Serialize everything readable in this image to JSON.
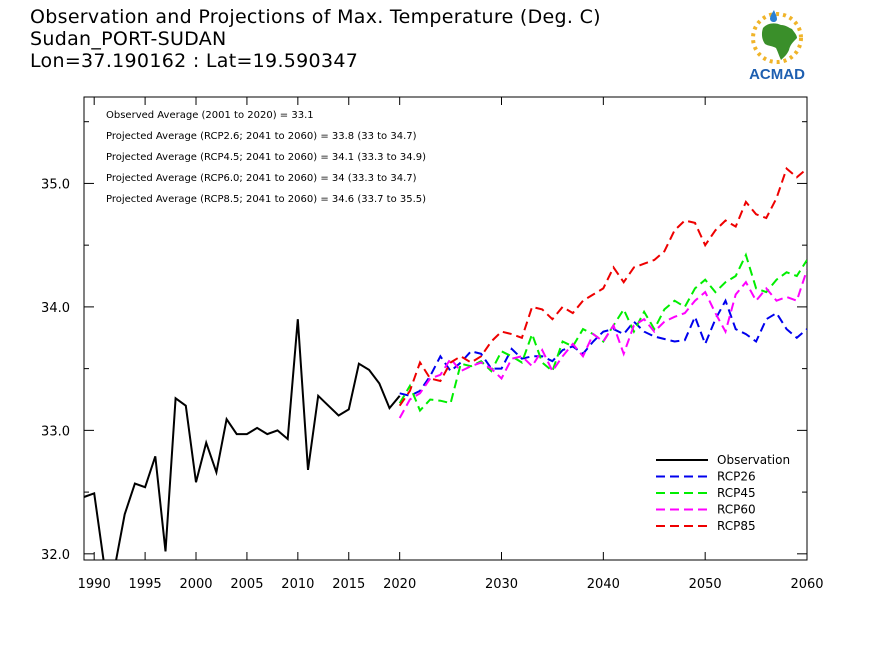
{
  "header": {
    "title": "Observation and Projections of Max. Temperature (Deg. C)",
    "location": "Sudan_PORT-SUDAN",
    "coords": "Lon=37.190162 : Lat=19.590347"
  },
  "logo": {
    "text": "ACMAD",
    "icon": "africa-map-sun-logo"
  },
  "annotations": [
    "Observed Average (2001 to 2020) = 33.1",
    "Projected Average (RCP2.6; 2041 to 2060) = 33.8 (33 to 34.7)",
    "Projected Average (RCP4.5; 2041 to 2060) = 34.1 (33.3 to 34.9)",
    "Projected Average (RCP6.0; 2041 to 2060) = 34 (33.3 to 34.7)",
    "Projected Average (RCP8.5; 2041 to 2060) = 34.6 (33.7 to 35.5)"
  ],
  "chart_data": {
    "type": "line",
    "xlim": [
      1989,
      2060
    ],
    "ylim": [
      31.95,
      35.7
    ],
    "x_ticks": [
      {
        "value": 1990,
        "label": "1990"
      },
      {
        "value": 1995,
        "label": "1995"
      },
      {
        "value": 2000,
        "label": "2000"
      },
      {
        "value": 2005,
        "label": "2005"
      },
      {
        "value": 2010,
        "label": "2010"
      },
      {
        "value": 2015,
        "label": "2015"
      },
      {
        "value": 2020,
        "label": "2020"
      },
      {
        "value": 2030,
        "label": "2030"
      },
      {
        "value": 2040,
        "label": "2040"
      },
      {
        "value": 2050,
        "label": "2050"
      },
      {
        "value": 2060,
        "label": "2060"
      }
    ],
    "y_ticks": [
      {
        "value": 32.0,
        "label": "32.0"
      },
      {
        "value": 33.0,
        "label": "33.0"
      },
      {
        "value": 34.0,
        "label": "34.0"
      },
      {
        "value": 35.0,
        "label": "35.0"
      }
    ],
    "legend_position": "bottom-right",
    "series": [
      {
        "name": "Observation",
        "color": "#000000",
        "dashed": false,
        "x": [
          1989,
          1990,
          1991,
          1992,
          1993,
          1994,
          1995,
          1996,
          1997,
          1998,
          1999,
          2000,
          2001,
          2002,
          2003,
          2004,
          2005,
          2006,
          2007,
          2008,
          2009,
          2010,
          2011,
          2012,
          2013,
          2014,
          2015,
          2016,
          2017,
          2018,
          2019,
          2020
        ],
        "y": [
          32.46,
          32.49,
          31.9,
          31.88,
          32.32,
          32.57,
          32.54,
          32.79,
          32.02,
          33.26,
          33.2,
          32.58,
          32.9,
          32.66,
          33.09,
          32.97,
          32.97,
          33.02,
          32.97,
          33.0,
          32.93,
          33.9,
          32.68,
          33.28,
          33.2,
          33.12,
          33.17,
          33.54,
          33.49,
          33.38,
          33.18,
          33.28
        ]
      },
      {
        "name": "RCP26",
        "color": "#0000ee",
        "dashed": true,
        "x": [
          2020,
          2021,
          2022,
          2023,
          2024,
          2025,
          2026,
          2027,
          2028,
          2029,
          2030,
          2031,
          2032,
          2033,
          2034,
          2035,
          2036,
          2037,
          2038,
          2039,
          2040,
          2041,
          2042,
          2043,
          2044,
          2045,
          2046,
          2047,
          2048,
          2049,
          2050,
          2051,
          2052,
          2053,
          2054,
          2055,
          2056,
          2057,
          2058,
          2059,
          2060
        ],
        "y": [
          33.3,
          33.28,
          33.32,
          33.44,
          33.6,
          33.48,
          33.55,
          33.64,
          33.62,
          33.5,
          33.5,
          33.66,
          33.58,
          33.6,
          33.6,
          33.56,
          33.65,
          33.68,
          33.62,
          33.72,
          33.8,
          33.82,
          33.78,
          33.88,
          33.8,
          33.76,
          33.74,
          33.72,
          33.73,
          33.92,
          33.7,
          33.9,
          34.05,
          33.82,
          33.78,
          33.72,
          33.9,
          33.95,
          33.82,
          33.75,
          33.82
        ]
      },
      {
        "name": "RCP45",
        "color": "#00ee00",
        "dashed": true,
        "x": [
          2020,
          2021,
          2022,
          2023,
          2024,
          2025,
          2026,
          2027,
          2028,
          2029,
          2030,
          2031,
          2032,
          2033,
          2034,
          2035,
          2036,
          2037,
          2038,
          2039,
          2040,
          2041,
          2042,
          2043,
          2044,
          2045,
          2046,
          2047,
          2048,
          2049,
          2050,
          2051,
          2052,
          2053,
          2054,
          2055,
          2056,
          2057,
          2058,
          2059,
          2060
        ],
        "y": [
          33.22,
          33.36,
          33.16,
          33.25,
          33.24,
          33.22,
          33.54,
          33.52,
          33.56,
          33.48,
          33.64,
          33.6,
          33.55,
          33.78,
          33.55,
          33.48,
          33.72,
          33.68,
          33.82,
          33.78,
          33.72,
          33.85,
          33.98,
          33.8,
          33.96,
          33.82,
          33.98,
          34.05,
          34.0,
          34.15,
          34.22,
          34.12,
          34.2,
          34.25,
          34.42,
          34.15,
          34.12,
          34.22,
          34.28,
          34.25,
          34.38
        ]
      },
      {
        "name": "RCP60",
        "color": "#ff00ff",
        "dashed": true,
        "x": [
          2020,
          2021,
          2022,
          2023,
          2024,
          2025,
          2026,
          2027,
          2028,
          2029,
          2030,
          2031,
          2032,
          2033,
          2034,
          2035,
          2036,
          2037,
          2038,
          2039,
          2040,
          2041,
          2042,
          2043,
          2044,
          2045,
          2046,
          2047,
          2048,
          2049,
          2050,
          2051,
          2052,
          2053,
          2054,
          2055,
          2056,
          2057,
          2058,
          2059,
          2060
        ],
        "y": [
          33.1,
          33.25,
          33.3,
          33.42,
          33.45,
          33.58,
          33.48,
          33.52,
          33.55,
          33.5,
          33.42,
          33.58,
          33.6,
          33.52,
          33.65,
          33.48,
          33.6,
          33.7,
          33.6,
          33.78,
          33.72,
          33.85,
          33.62,
          33.85,
          33.9,
          33.8,
          33.88,
          33.92,
          33.95,
          34.05,
          34.12,
          33.95,
          33.8,
          34.1,
          34.2,
          34.05,
          34.15,
          34.05,
          34.08,
          34.05,
          34.3
        ]
      },
      {
        "name": "RCP85",
        "color": "#ee0000",
        "dashed": true,
        "x": [
          2020,
          2021,
          2022,
          2023,
          2024,
          2025,
          2026,
          2027,
          2028,
          2029,
          2030,
          2031,
          2032,
          2033,
          2034,
          2035,
          2036,
          2037,
          2038,
          2039,
          2040,
          2041,
          2042,
          2043,
          2044,
          2045,
          2046,
          2047,
          2048,
          2049,
          2050,
          2051,
          2052,
          2053,
          2054,
          2055,
          2056,
          2057,
          2058,
          2059,
          2060
        ],
        "y": [
          33.2,
          33.32,
          33.55,
          33.42,
          33.4,
          33.55,
          33.6,
          33.55,
          33.6,
          33.72,
          33.8,
          33.78,
          33.75,
          34.0,
          33.98,
          33.9,
          34.0,
          33.95,
          34.05,
          34.1,
          34.15,
          34.32,
          34.2,
          34.32,
          34.35,
          34.38,
          34.45,
          34.62,
          34.7,
          34.68,
          34.5,
          34.62,
          34.7,
          34.65,
          34.85,
          34.75,
          34.72,
          34.88,
          35.12,
          35.05,
          35.12
        ]
      }
    ]
  }
}
